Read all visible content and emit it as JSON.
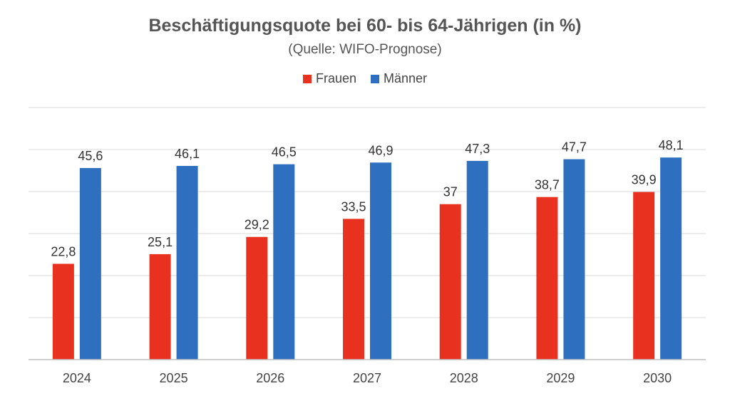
{
  "chart_data": {
    "type": "bar",
    "title": "Beschäftigungsquote bei 60- bis 64-Jährigen (in %)",
    "subtitle": "(Quelle: WIFO-Prognose)",
    "categories": [
      "2024",
      "2025",
      "2026",
      "2027",
      "2028",
      "2029",
      "2030"
    ],
    "series": [
      {
        "name": "Frauen",
        "color": "#e8321f",
        "values": [
          22.8,
          25.1,
          29.2,
          33.5,
          37,
          38.7,
          39.9
        ],
        "labels": [
          "22,8",
          "25,1",
          "29,2",
          "33,5",
          "37",
          "38,7",
          "39,9"
        ]
      },
      {
        "name": "Männer",
        "color": "#2e6fbf",
        "values": [
          45.6,
          46.1,
          46.5,
          46.9,
          47.3,
          47.7,
          48.1
        ],
        "labels": [
          "45,6",
          "46,1",
          "46,5",
          "46,9",
          "47,3",
          "47,7",
          "48,1"
        ]
      }
    ],
    "ylim": [
      0,
      60
    ],
    "grid": true,
    "legend_position": "top-center",
    "gridline_color": "#d9d9d9"
  }
}
